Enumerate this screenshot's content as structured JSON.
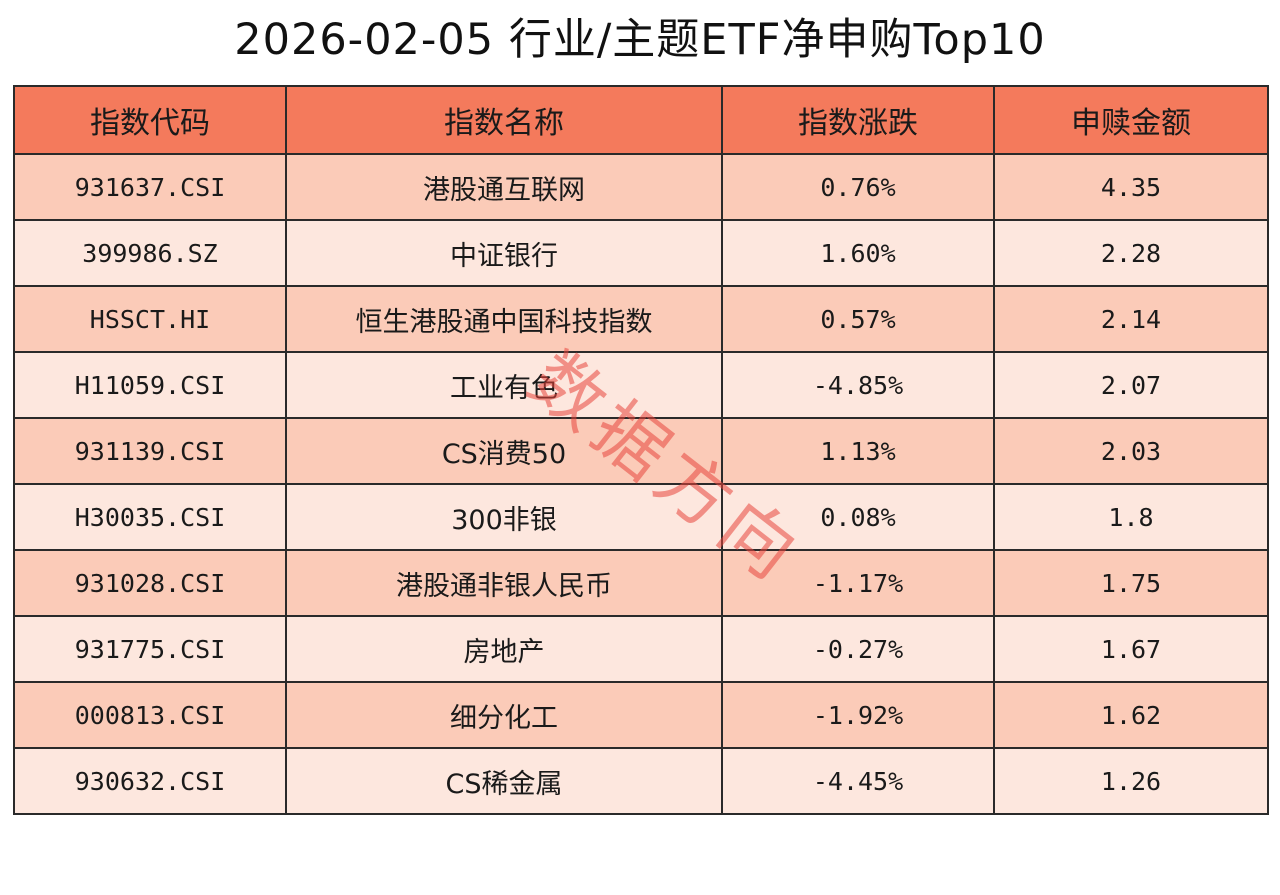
{
  "title": "2026-02-05 行业/主题ETF净申购Top10",
  "columns": [
    "指数代码",
    "指数名称",
    "指数涨跌",
    "申赎金额"
  ],
  "rows": [
    {
      "code": "931637.CSI",
      "name": "港股通互联网",
      "change": "0.76%",
      "amount": "4.35"
    },
    {
      "code": "399986.SZ",
      "name": "中证银行",
      "change": "1.60%",
      "amount": "2.28"
    },
    {
      "code": "HSSCT.HI",
      "name": "恒生港股通中国科技指数",
      "change": "0.57%",
      "amount": "2.14"
    },
    {
      "code": "H11059.CSI",
      "name": "工业有色",
      "change": "-4.85%",
      "amount": "2.07"
    },
    {
      "code": "931139.CSI",
      "name": "CS消费50",
      "change": "1.13%",
      "amount": "2.03"
    },
    {
      "code": "H30035.CSI",
      "name": "300非银",
      "change": "0.08%",
      "amount": "1.8"
    },
    {
      "code": "931028.CSI",
      "name": "港股通非银人民币",
      "change": "-1.17%",
      "amount": "1.75"
    },
    {
      "code": "931775.CSI",
      "name": "房地产",
      "change": "-0.27%",
      "amount": "1.67"
    },
    {
      "code": "000813.CSI",
      "name": "细分化工",
      "change": "-1.92%",
      "amount": "1.62"
    },
    {
      "code": "930632.CSI",
      "name": "CS稀金属",
      "change": "-4.45%",
      "amount": "1.26"
    }
  ],
  "watermark": "数据方向",
  "colors": {
    "header_bg": "#f47a5c",
    "row_odd_bg": "#fbcbb8",
    "row_even_bg": "#fde7de",
    "watermark": "#e8463c"
  }
}
